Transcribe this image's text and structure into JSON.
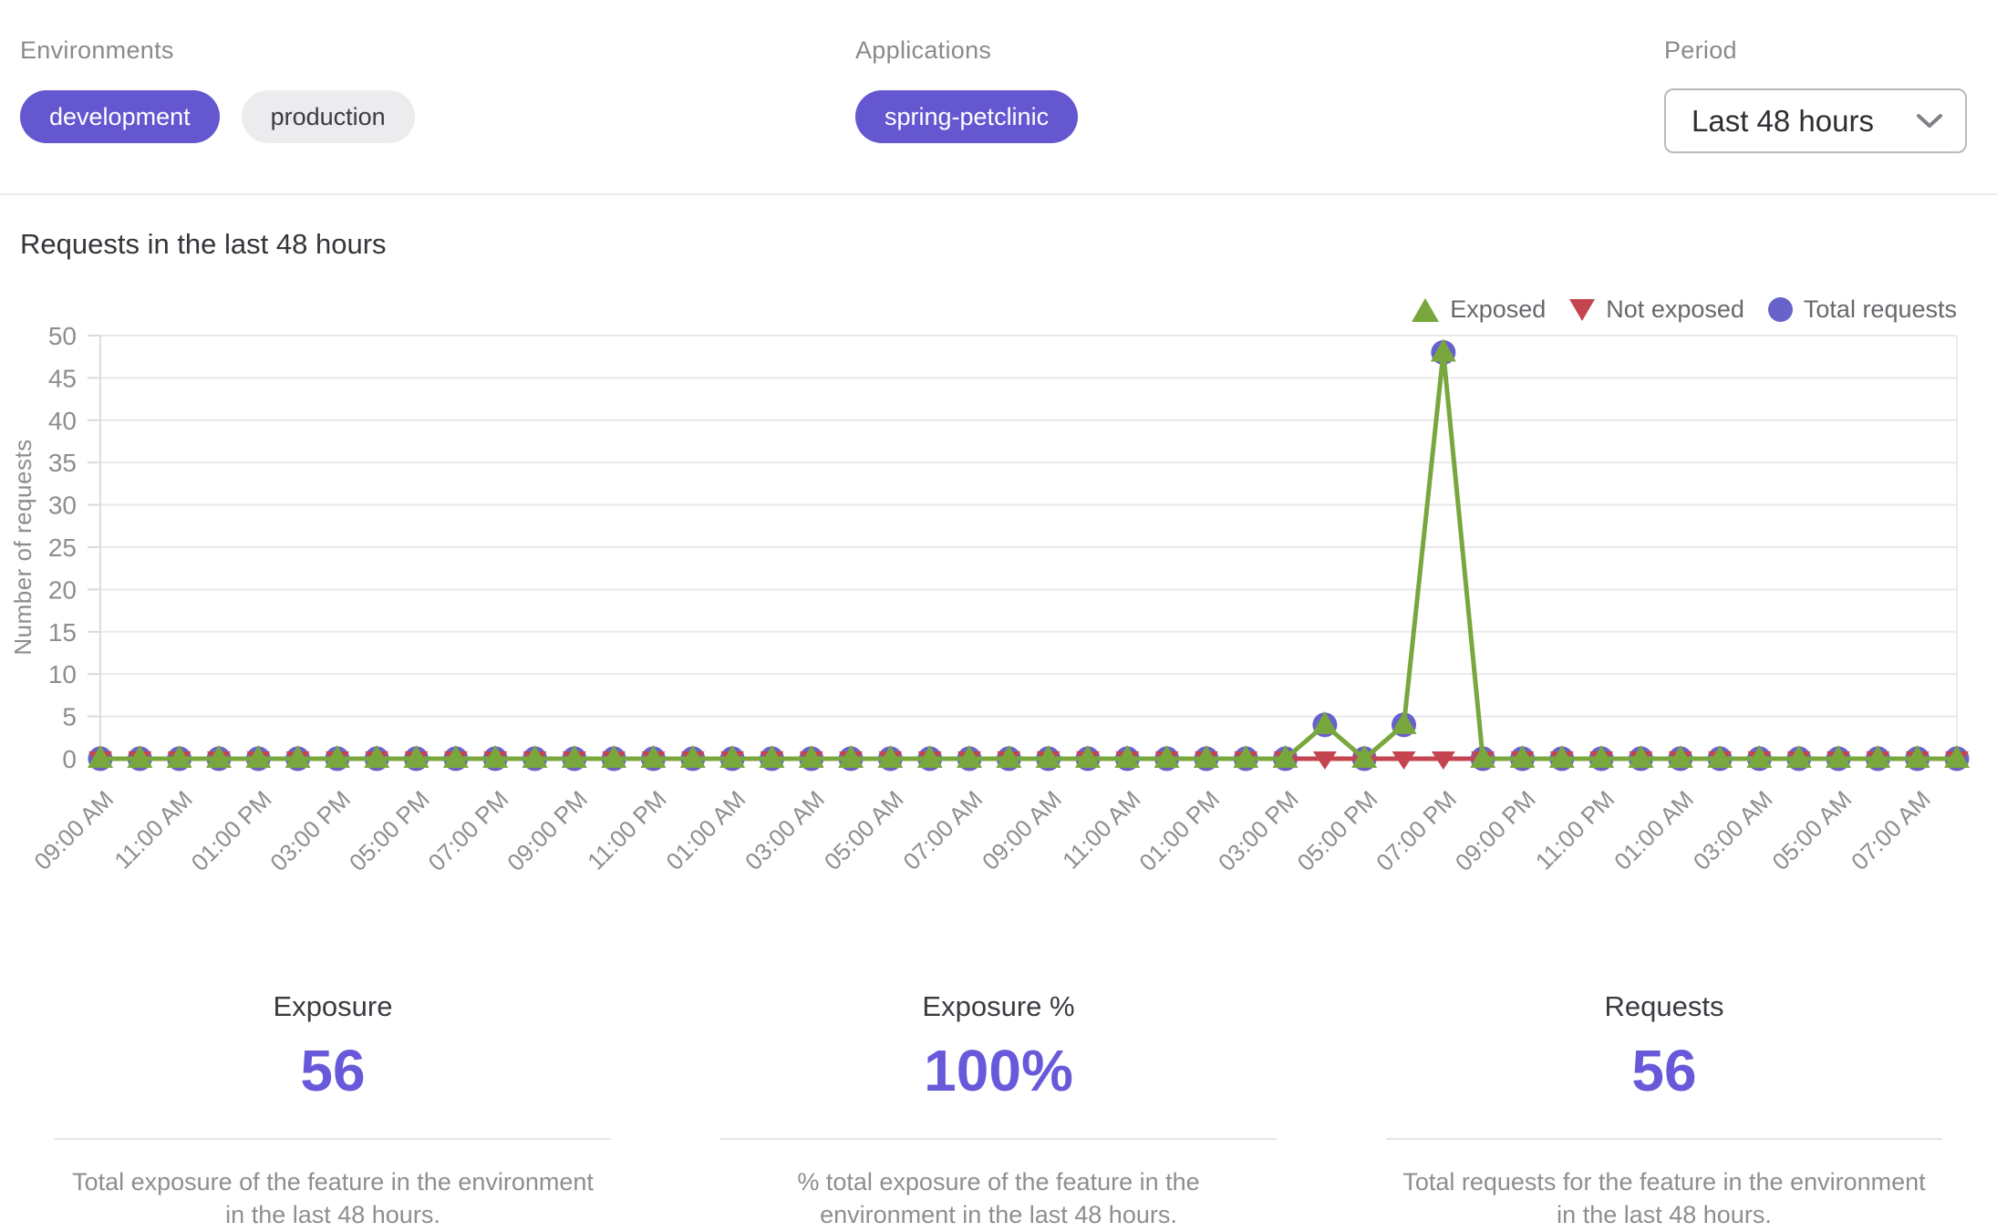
{
  "colors": {
    "accent_purple": "#6457d0",
    "stat_value_purple": "#6759da",
    "exposed_green": "#78a73d",
    "not_exposed_red": "#c4454f",
    "total_requests_purple": "#6862cb",
    "muted_text": "#8a8a8e",
    "pill_gray_bg": "#ececee"
  },
  "filters": {
    "environments": {
      "label": "Environments",
      "options": [
        {
          "label": "development",
          "selected": true
        },
        {
          "label": "production",
          "selected": false
        }
      ]
    },
    "applications": {
      "label": "Applications",
      "options": [
        {
          "label": "spring-petclinic",
          "selected": true
        }
      ]
    },
    "period": {
      "label": "Period",
      "value": "Last 48 hours"
    }
  },
  "chart": {
    "title": "Requests in the last 48 hours"
  },
  "chart_data": {
    "type": "line",
    "title": "Requests in the last 48 hours",
    "xlabel": "",
    "ylabel": "Number of requests",
    "ylim": [
      0,
      50
    ],
    "y_tick_step": 5,
    "grid": "horizontal",
    "legend_position": "top-right",
    "x_tick_every": 2,
    "x": [
      "09:00 AM",
      "10:00 AM",
      "11:00 AM",
      "12:00 PM",
      "01:00 PM",
      "02:00 PM",
      "03:00 PM",
      "04:00 PM",
      "05:00 PM",
      "06:00 PM",
      "07:00 PM",
      "08:00 PM",
      "09:00 PM",
      "10:00 PM",
      "11:00 PM",
      "12:00 AM",
      "01:00 AM",
      "02:00 AM",
      "03:00 AM",
      "04:00 AM",
      "05:00 AM",
      "06:00 AM",
      "07:00 AM",
      "08:00 AM",
      "09:00 AM",
      "10:00 AM",
      "11:00 AM",
      "12:00 PM",
      "01:00 PM",
      "02:00 PM",
      "03:00 PM",
      "04:00 PM",
      "05:00 PM",
      "06:00 PM",
      "07:00 PM",
      "08:00 PM",
      "09:00 PM",
      "10:00 PM",
      "11:00 PM",
      "12:00 AM",
      "01:00 AM",
      "02:00 AM",
      "03:00 AM",
      "04:00 AM",
      "05:00 AM",
      "06:00 AM",
      "07:00 AM",
      "08:00 AM"
    ],
    "series": [
      {
        "name": "Exposed",
        "marker": "triangle-up",
        "color": "#78a73d",
        "values": [
          0,
          0,
          0,
          0,
          0,
          0,
          0,
          0,
          0,
          0,
          0,
          0,
          0,
          0,
          0,
          0,
          0,
          0,
          0,
          0,
          0,
          0,
          0,
          0,
          0,
          0,
          0,
          0,
          0,
          0,
          0,
          4,
          0,
          4,
          48,
          0,
          0,
          0,
          0,
          0,
          0,
          0,
          0,
          0,
          0,
          0,
          0,
          0
        ]
      },
      {
        "name": "Not exposed",
        "marker": "triangle-down",
        "color": "#c4454f",
        "values": [
          0,
          0,
          0,
          0,
          0,
          0,
          0,
          0,
          0,
          0,
          0,
          0,
          0,
          0,
          0,
          0,
          0,
          0,
          0,
          0,
          0,
          0,
          0,
          0,
          0,
          0,
          0,
          0,
          0,
          0,
          0,
          0,
          0,
          0,
          0,
          0,
          0,
          0,
          0,
          0,
          0,
          0,
          0,
          0,
          0,
          0,
          0,
          0
        ]
      },
      {
        "name": "Total requests",
        "marker": "circle",
        "color": "#6862cb",
        "values": [
          0,
          0,
          0,
          0,
          0,
          0,
          0,
          0,
          0,
          0,
          0,
          0,
          0,
          0,
          0,
          0,
          0,
          0,
          0,
          0,
          0,
          0,
          0,
          0,
          0,
          0,
          0,
          0,
          0,
          0,
          0,
          4,
          0,
          4,
          48,
          0,
          0,
          0,
          0,
          0,
          0,
          0,
          0,
          0,
          0,
          0,
          0,
          0
        ]
      }
    ]
  },
  "stats": [
    {
      "label": "Exposure",
      "value": "56",
      "description": "Total exposure of the feature in the environment in the last 48 hours."
    },
    {
      "label": "Exposure %",
      "value": "100%",
      "description": "% total exposure of the feature in the environment in the last 48 hours."
    },
    {
      "label": "Requests",
      "value": "56",
      "description": "Total requests for the feature in the environment in the last 48 hours."
    }
  ]
}
